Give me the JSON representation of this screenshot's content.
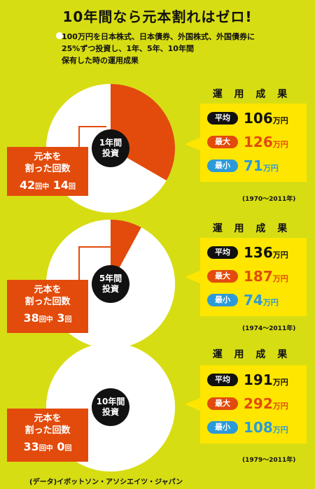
{
  "title": "10年間なら元本割れはゼロ!",
  "lead_lines": [
    "100万円を日本株式、日本債券、外国株式、外国債券に",
    "25%ずつ投資し、1年、5年、10年間",
    "保有した時の運用成果"
  ],
  "colors": {
    "background": "#d7dd13",
    "loss": "#e24b0c",
    "no_loss": "#ffffff",
    "result_box": "#ffe600",
    "min": "#2c9ad8"
  },
  "result_heading": "運 用 成 果",
  "badge_labels": {
    "avg": "平均",
    "max": "最大",
    "min": "最小"
  },
  "unit": "万円",
  "loss_label_line1": "元本を",
  "loss_label_line2": "割った回数",
  "total_prefix": "回中",
  "count_suffix": "回",
  "source": "(データ)イボットソン・アソシエイツ・ジャパン",
  "chart_data": [
    {
      "type": "pie",
      "center_label": [
        "1年間",
        "投資"
      ],
      "total": 42,
      "loss_count": 14,
      "slices": [
        {
          "name": "元本割れ",
          "value": 14,
          "color": "#e24b0c"
        },
        {
          "name": "",
          "value": 28,
          "color": "#ffffff"
        }
      ],
      "results": {
        "avg": "106",
        "max": "126",
        "min": "71"
      },
      "period": "(1970〜2011年)"
    },
    {
      "type": "pie",
      "center_label": [
        "5年間",
        "投資"
      ],
      "total": 38,
      "loss_count": 3,
      "slices": [
        {
          "name": "元本割れ",
          "value": 3,
          "color": "#e24b0c"
        },
        {
          "name": "",
          "value": 35,
          "color": "#ffffff"
        }
      ],
      "results": {
        "avg": "136",
        "max": "187",
        "min": "74"
      },
      "period": "(1974〜2011年)"
    },
    {
      "type": "pie",
      "center_label": [
        "10年間",
        "投資"
      ],
      "total": 33,
      "loss_count": 0,
      "slices": [
        {
          "name": "元本割れ",
          "value": 0,
          "color": "#e24b0c"
        },
        {
          "name": "",
          "value": 33,
          "color": "#ffffff"
        }
      ],
      "results": {
        "avg": "191",
        "max": "292",
        "min": "108"
      },
      "period": "(1979〜2011年)"
    }
  ]
}
